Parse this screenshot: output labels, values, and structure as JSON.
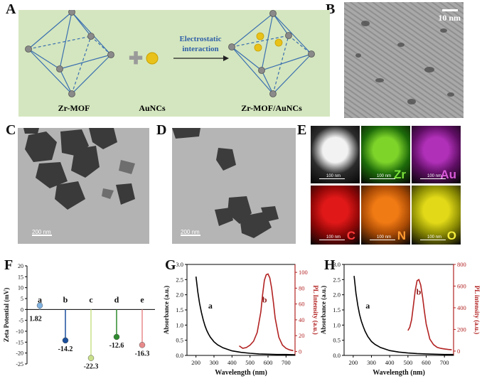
{
  "panel_labels": {
    "A": "A",
    "B": "B",
    "C": "C",
    "D": "D",
    "E": "E",
    "F": "F",
    "G": "G",
    "H": "H"
  },
  "schematic": {
    "zr_mof_label": "Zr-MOF",
    "aunc_label": "AuNCs",
    "product_label": "Zr-MOF/AuNCs",
    "arrow_text_line1": "Electrostatic",
    "arrow_text_line2": "interaction",
    "plus_symbol": "✚",
    "colors": {
      "background": "#d4e6bf",
      "frame": "#3a6fb0",
      "node": "#8a8a8a",
      "gold": "#e8c21a",
      "arrow_text": "#2f5fa8"
    }
  },
  "tem": {
    "b_scale": "10 nm",
    "c_scale": "200 nm",
    "d_scale": "200 nm"
  },
  "eds": {
    "tiles": [
      {
        "element": "",
        "color": "#2b2b2b",
        "glow": "#f2f2f2",
        "scale": "100 nm"
      },
      {
        "element": "Zr",
        "color": "#1d6a0a",
        "glow": "#7fd42a",
        "label_color": "#7be03a",
        "scale": "100 nm"
      },
      {
        "element": "Au",
        "color": "#5e0e63",
        "glow": "#b030b8",
        "label_color": "#d85ad8",
        "scale": "100 nm"
      },
      {
        "element": "C",
        "color": "#8f0707",
        "glow": "#e01818",
        "label_color": "#ff3a3a",
        "scale": "100 nm"
      },
      {
        "element": "N",
        "color": "#a84a05",
        "glow": "#f07a14",
        "label_color": "#ff9a30",
        "scale": "100 nm"
      },
      {
        "element": "O",
        "color": "#8c8c04",
        "glow": "#e2da18",
        "label_color": "#f4ec3a",
        "scale": "100 nm"
      }
    ]
  },
  "chart_data": [
    {
      "panel": "F",
      "type": "bar",
      "ylabel": "Zeta Potential (mV)",
      "ylim": [
        -25,
        20
      ],
      "yticks": [
        "20",
        "15",
        "10",
        "5",
        "0",
        "-5",
        "-10",
        "-15",
        "-20",
        "-25"
      ],
      "categories": [
        "a",
        "b",
        "c",
        "d",
        "e"
      ],
      "values": [
        1.82,
        -14.2,
        -22.3,
        -12.6,
        -16.3
      ],
      "value_labels": [
        "1.82",
        "-14.2",
        "-22.3",
        "-12.6",
        "-16.3"
      ],
      "colors": [
        "#7fb2e0",
        "#1a4f9c",
        "#c9e08a",
        "#2e8a2e",
        "#e88a8a"
      ]
    },
    {
      "panel": "G",
      "type": "line",
      "xlabel": "Wavelength (nm)",
      "ylabel_left": "Absorbance (a.u.)",
      "ylabel_right": "PL Intensity (a.u.)",
      "xlim": [
        150,
        750
      ],
      "ylim_left": [
        0,
        3.0
      ],
      "ylim_right": [
        -5,
        110
      ],
      "xticks": [
        "200",
        "300",
        "400",
        "500",
        "600",
        "700"
      ],
      "yticks_left": [
        "0.0",
        "0.5",
        "1.0",
        "1.5",
        "2.0",
        "2.5",
        "3.0"
      ],
      "yticks_right": [
        "0",
        "20",
        "40",
        "60",
        "80",
        "100"
      ],
      "series": [
        {
          "name": "a",
          "axis": "left",
          "color": "#000000",
          "x": [
            200,
            210,
            220,
            230,
            240,
            250,
            260,
            270,
            280,
            300,
            320,
            350,
            400,
            450,
            500,
            550,
            600,
            650,
            700,
            750
          ],
          "y": [
            2.6,
            2.1,
            1.72,
            1.42,
            1.18,
            0.98,
            0.82,
            0.7,
            0.6,
            0.45,
            0.35,
            0.25,
            0.15,
            0.1,
            0.07,
            0.05,
            0.04,
            0.03,
            0.03,
            0.02
          ]
        },
        {
          "name": "b",
          "axis": "right",
          "color": "#b22222",
          "x": [
            440,
            460,
            480,
            500,
            520,
            540,
            560,
            570,
            580,
            590,
            600,
            610,
            620,
            630,
            640,
            660,
            680,
            700,
            720,
            740
          ],
          "y": [
            7,
            4,
            5,
            8,
            13,
            24,
            50,
            72,
            90,
            97,
            98,
            93,
            80,
            62,
            42,
            18,
            8,
            4,
            2,
            1
          ]
        }
      ]
    },
    {
      "panel": "H",
      "type": "line",
      "xlabel": "Wavelength (nm)",
      "ylabel_left": "Absorbance (a.u.)",
      "ylabel_right": "PL intensity (a.u.)",
      "xlim": [
        150,
        750
      ],
      "ylim_left": [
        0,
        3.0
      ],
      "ylim_right": [
        -40,
        800
      ],
      "xticks": [
        "200",
        "300",
        "400",
        "500",
        "600",
        "700"
      ],
      "yticks_left": [
        "0.0",
        "0.5",
        "1.0",
        "1.5",
        "2.0",
        "2.5",
        "3.0"
      ],
      "yticks_right": [
        "0",
        "200",
        "400",
        "600",
        "800"
      ],
      "series": [
        {
          "name": "a",
          "axis": "left",
          "color": "#000000",
          "x": [
            205,
            215,
            225,
            235,
            245,
            255,
            265,
            280,
            300,
            320,
            350,
            400,
            450,
            500,
            550,
            600,
            650,
            700,
            750
          ],
          "y": [
            2.62,
            2.05,
            1.65,
            1.35,
            1.12,
            0.95,
            0.8,
            0.62,
            0.46,
            0.36,
            0.26,
            0.16,
            0.11,
            0.08,
            0.06,
            0.05,
            0.04,
            0.03,
            0.03
          ]
        },
        {
          "name": "b",
          "axis": "right",
          "color": "#b22222",
          "x": [
            500,
            510,
            520,
            530,
            540,
            550,
            560,
            570,
            580,
            590,
            600,
            620,
            640,
            660,
            680,
            700,
            720,
            740
          ],
          "y": [
            190,
            220,
            290,
            420,
            560,
            650,
            660,
            610,
            500,
            370,
            250,
            110,
            60,
            35,
            25,
            20,
            15,
            12
          ]
        }
      ]
    }
  ]
}
